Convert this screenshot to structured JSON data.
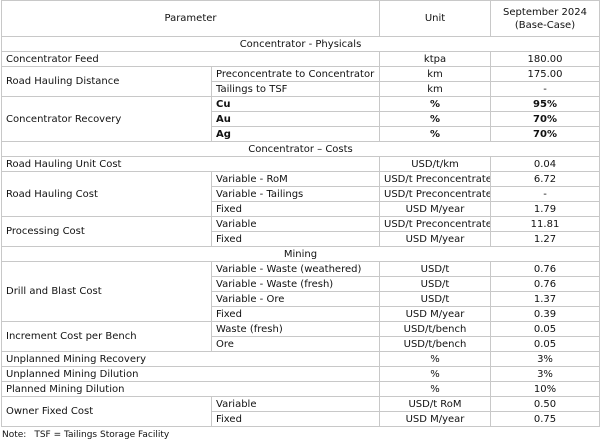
{
  "header": {
    "parameter": "Parameter",
    "unit": "Unit",
    "value": "September 2024\n(Base-Case)"
  },
  "sections": [
    {
      "title": "Concentrator - Physicals",
      "groups": [
        {
          "parameter": "Concentrator Feed",
          "rows": [
            {
              "unit": "ktpa",
              "value": "180.00"
            }
          ]
        },
        {
          "parameter": "Road Hauling Distance",
          "rows": [
            {
              "sub": "Preconcentrate to Concentrator",
              "unit": "km",
              "value": "175.00"
            },
            {
              "sub": "Tailings to TSF",
              "unit": "km",
              "value": "-"
            }
          ]
        },
        {
          "parameter": "Concentrator Recovery",
          "bold": true,
          "rows": [
            {
              "sub": "Cu",
              "unit": "%",
              "value": "95%"
            },
            {
              "sub": "Au",
              "unit": "%",
              "value": "70%"
            },
            {
              "sub": "Ag",
              "unit": "%",
              "value": "70%"
            }
          ]
        }
      ]
    },
    {
      "title": "Concentrator – Costs",
      "groups": [
        {
          "parameter": "Road Hauling Unit Cost",
          "rows": [
            {
              "unit": "USD/t/km",
              "value": "0.04"
            }
          ]
        },
        {
          "parameter": "Road Hauling Cost",
          "rows": [
            {
              "sub": "Variable - RoM",
              "unit": "USD/t Preconcentrate",
              "value": "6.72"
            },
            {
              "sub": "Variable - Tailings",
              "unit": "USD/t Preconcentrate",
              "value": "-"
            },
            {
              "sub": "Fixed",
              "unit": "USD M/year",
              "value": "1.79"
            }
          ]
        },
        {
          "parameter": "Processing Cost",
          "rows": [
            {
              "sub": "Variable",
              "unit": "USD/t Preconcentrate",
              "value": "11.81"
            },
            {
              "sub": "Fixed",
              "unit": "USD M/year",
              "value": "1.27"
            }
          ]
        }
      ]
    },
    {
      "title": "Mining",
      "groups": [
        {
          "parameter": "Drill and Blast Cost",
          "rows": [
            {
              "sub": "Variable - Waste (weathered)",
              "unit": "USD/t",
              "value": "0.76"
            },
            {
              "sub": "Variable - Waste (fresh)",
              "unit": "USD/t",
              "value": "0.76"
            },
            {
              "sub": "Variable - Ore",
              "unit": "USD/t",
              "value": "1.37"
            },
            {
              "sub": "Fixed",
              "unit": "USD M/year",
              "value": "0.39"
            }
          ]
        },
        {
          "parameter": "Increment Cost per Bench",
          "rows": [
            {
              "sub": "Waste (fresh)",
              "unit": "USD/t/bench",
              "value": "0.05"
            },
            {
              "sub": "Ore",
              "unit": "USD/t/bench",
              "value": "0.05"
            }
          ]
        },
        {
          "parameter": "Unplanned Mining Recovery",
          "rows": [
            {
              "unit": "%",
              "value": "3%"
            }
          ]
        },
        {
          "parameter": "Unplanned Mining Dilution",
          "rows": [
            {
              "unit": "%",
              "value": "3%"
            }
          ]
        },
        {
          "parameter": "Planned Mining Dilution",
          "rows": [
            {
              "unit": "%",
              "value": "10%"
            }
          ]
        },
        {
          "parameter": "Owner Fixed Cost",
          "rows": [
            {
              "sub": "Variable",
              "unit": "USD/t RoM",
              "value": "0.50"
            },
            {
              "sub": "Fixed",
              "unit": "USD M/year",
              "value": "0.75"
            }
          ]
        }
      ]
    }
  ],
  "note": {
    "label": "Note:",
    "text": "TSF = Tailings Storage Facility"
  }
}
